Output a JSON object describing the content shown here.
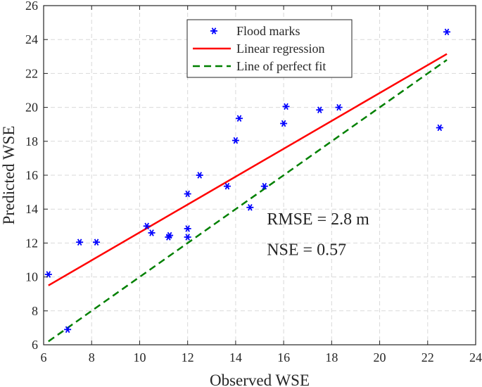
{
  "chart_data": {
    "type": "scatter",
    "xlabel": "Observed WSE",
    "ylabel": "Predicted WSE",
    "xlim": [
      6,
      24
    ],
    "ylim": [
      6,
      26
    ],
    "xticks": [
      6,
      8,
      10,
      12,
      14,
      16,
      18,
      20,
      22,
      24
    ],
    "yticks": [
      6,
      8,
      10,
      12,
      14,
      16,
      18,
      20,
      22,
      24,
      26
    ],
    "grid": true,
    "legend_position": "top-center",
    "series": [
      {
        "name": "Flood marks",
        "kind": "points",
        "marker": "*",
        "color": "#0000ff",
        "points": [
          [
            6.2,
            10.15
          ],
          [
            7.0,
            6.9
          ],
          [
            7.5,
            12.05
          ],
          [
            8.2,
            12.05
          ],
          [
            10.3,
            13.0
          ],
          [
            10.5,
            12.6
          ],
          [
            11.2,
            12.35
          ],
          [
            11.25,
            12.45
          ],
          [
            12.0,
            12.85
          ],
          [
            12.0,
            12.35
          ],
          [
            12.0,
            14.9
          ],
          [
            12.5,
            16.0
          ],
          [
            13.65,
            15.35
          ],
          [
            14.0,
            18.05
          ],
          [
            14.15,
            19.35
          ],
          [
            14.6,
            14.1
          ],
          [
            15.2,
            15.35
          ],
          [
            16.0,
            19.05
          ],
          [
            16.1,
            20.05
          ],
          [
            17.5,
            19.85
          ],
          [
            18.3,
            20.0
          ],
          [
            22.5,
            18.8
          ],
          [
            22.8,
            24.45
          ]
        ]
      },
      {
        "name": "Linear regression",
        "kind": "line",
        "style": "solid",
        "color": "#ff0000",
        "points": [
          [
            6.2,
            9.5
          ],
          [
            22.8,
            23.15
          ]
        ]
      },
      {
        "name": "Line of perfect fit",
        "kind": "line",
        "style": "dashed",
        "color": "#008000",
        "points": [
          [
            6.2,
            6.2
          ],
          [
            22.8,
            22.8
          ]
        ]
      }
    ],
    "annotations": [
      {
        "text": "RMSE = 2.8 m",
        "x": 15.3,
        "y": 13.1
      },
      {
        "text": "NSE = 0.57",
        "x": 15.3,
        "y": 11.3
      }
    ]
  }
}
